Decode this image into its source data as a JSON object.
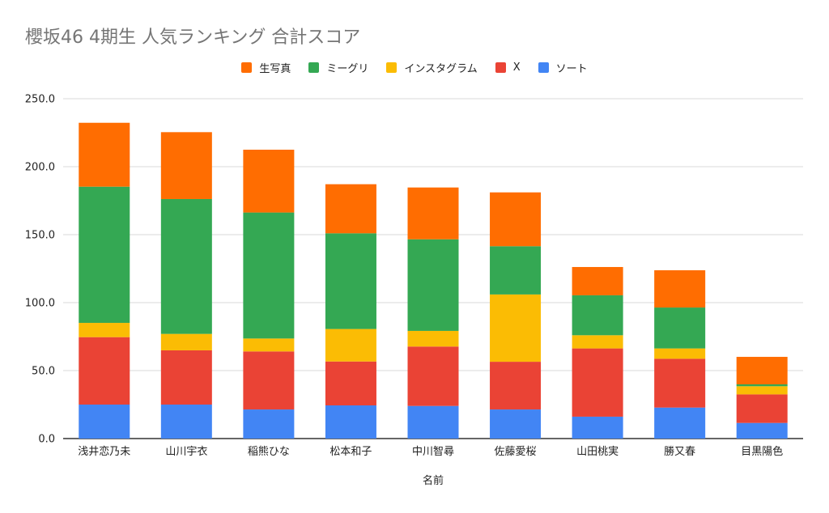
{
  "chart_data": {
    "type": "bar",
    "stacked": true,
    "title": "櫻坂46 4期生 人気ランキング 合計スコア",
    "xlabel": "名前",
    "ylabel": "",
    "ylim": [
      0,
      250
    ],
    "yticks": [
      0,
      50,
      100,
      150,
      200,
      250
    ],
    "ytick_labels": [
      "0.0",
      "50.0",
      "100.0",
      "150.0",
      "200.0",
      "250.0"
    ],
    "grid": true,
    "legend_position": "top",
    "categories": [
      "浅井恋乃未",
      "山川宇衣",
      "稲熊ひな",
      "松本和子",
      "中川智尋",
      "佐藤愛桜",
      "山田桃実",
      "勝又春",
      "目黒陽色"
    ],
    "legend_order": [
      "生写真",
      "ミーグリ",
      "インスタグラム",
      "X",
      "ソート"
    ],
    "series": [
      {
        "name": "ソート",
        "color": "#4285f4",
        "values": [
          25.0,
          25.0,
          21.4,
          24.4,
          24.0,
          21.4,
          16.1,
          22.8,
          11.5
        ]
      },
      {
        "name": "X",
        "color": "#ea4335",
        "values": [
          49.6,
          39.9,
          42.7,
          32.3,
          43.7,
          35.1,
          50.2,
          35.9,
          21.0
        ]
      },
      {
        "name": "インスタグラム",
        "color": "#fbbc04",
        "values": [
          10.5,
          12.1,
          9.5,
          23.9,
          11.5,
          49.5,
          9.7,
          7.6,
          6.0
        ]
      },
      {
        "name": "ミーグリ",
        "color": "#34a853",
        "values": [
          100.2,
          99.2,
          92.7,
          70.4,
          67.4,
          35.5,
          29.4,
          30.1,
          1.4
        ]
      },
      {
        "name": "生写真",
        "color": "#ff6d01",
        "values": [
          47.0,
          49.2,
          46.2,
          36.1,
          38.1,
          39.6,
          20.8,
          27.4,
          20.2
        ]
      }
    ]
  }
}
